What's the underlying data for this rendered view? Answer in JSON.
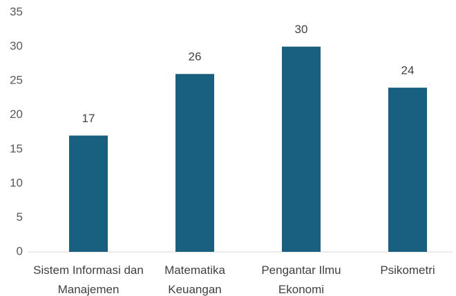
{
  "chart_data": {
    "type": "bar",
    "categories": [
      "Sistem Informasi dan Manajemen",
      "Matematika Keuangan",
      "Pengantar Ilmu Ekonomi",
      "Psikometri"
    ],
    "values": [
      17,
      26,
      30,
      24
    ],
    "color": "#195f80",
    "ylim": [
      0,
      35
    ],
    "yticks": [
      0,
      5,
      10,
      15,
      20,
      25,
      30,
      35
    ],
    "grid": false
  }
}
